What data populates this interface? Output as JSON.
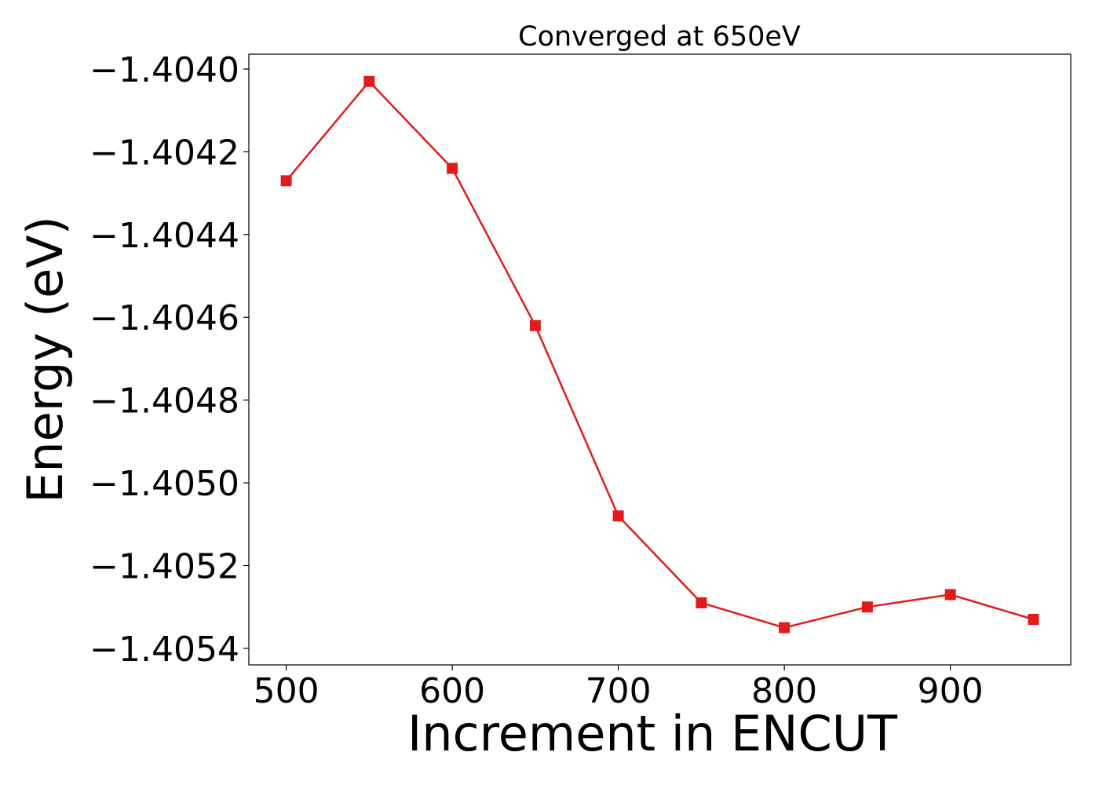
{
  "chart_data": {
    "type": "line",
    "title": "Converged at 650eV",
    "xlabel": "Increment in ENCUT",
    "ylabel": "Energy (eV)",
    "x": [
      500,
      550,
      600,
      650,
      700,
      750,
      800,
      850,
      900,
      950
    ],
    "series": [
      {
        "values": [
          -1.40427,
          -1.40403,
          -1.40424,
          -1.40462,
          -1.40508,
          -1.40529,
          -1.40535,
          -1.4053,
          -1.40527,
          -1.40533
        ],
        "color": "#e31a1c",
        "marker": "square"
      }
    ],
    "xlim": [
      477.5,
      972.5
    ],
    "ylim": [
      -1.40544,
      -1.403964
    ],
    "xticks": [
      500,
      600,
      700,
      800,
      900
    ],
    "xtick_labels": [
      "500",
      "600",
      "700",
      "800",
      "900"
    ],
    "yticks": [
      -1.404,
      -1.4042,
      -1.4044,
      -1.4046,
      -1.4048,
      -1.405,
      -1.4052,
      -1.4054
    ],
    "ytick_labels": [
      "−1.4040",
      "−1.4042",
      "−1.4044",
      "−1.4046",
      "−1.4048",
      "−1.4050",
      "−1.4052",
      "−1.4054"
    ],
    "grid": false,
    "legend": "none"
  }
}
